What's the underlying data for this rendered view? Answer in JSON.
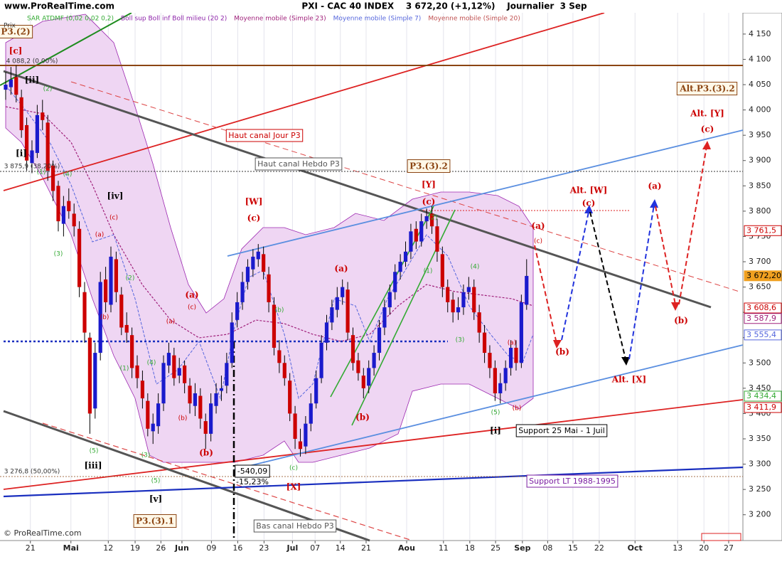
{
  "chart_data": {
    "type": "candlestick",
    "site": "www.ProRealTime.com",
    "title": "PXI - CAC 40 INDEX    3 672,20 (+1,12%)    Journalier  3 Sep",
    "y_label": "Prix",
    "copyright": "© ProRealTime.com",
    "colors": {
      "up": "#1a1acc",
      "down": "#cc0000",
      "wick": "#000000"
    },
    "legend": [
      {
        "name": "SAR ATDMF (0,02 0,02 0,2)",
        "color": "#33aa33"
      },
      {
        "name": "Boll sup Boll inf Boll milieu (20 2)",
        "color": "#8e24aa"
      },
      {
        "name": "Moyenne mobile (Simple 23)",
        "color": "#a0207a"
      },
      {
        "name": "Moyenne mobile (Simple 7)",
        "color": "#5566dd"
      },
      {
        "name": "Moyenne mobile (Simple 20)",
        "color": "#c05050"
      }
    ],
    "candles": [
      [
        4040,
        4075,
        4020,
        4050
      ],
      [
        4045,
        4085,
        4030,
        4060
      ],
      [
        4065,
        4088,
        4015,
        4030
      ],
      [
        4025,
        4040,
        3945,
        3960
      ],
      [
        3970,
        3985,
        3880,
        3900
      ],
      [
        3895,
        3940,
        3875,
        3920
      ],
      [
        3915,
        4010,
        3905,
        3990
      ],
      [
        3995,
        4020,
        3960,
        3980
      ],
      [
        3975,
        3990,
        3860,
        3880
      ],
      [
        3890,
        3900,
        3820,
        3840
      ],
      [
        3850,
        3860,
        3760,
        3780
      ],
      [
        3775,
        3830,
        3750,
        3810
      ],
      [
        3820,
        3845,
        3785,
        3800
      ],
      [
        3795,
        3815,
        3750,
        3770
      ],
      [
        3765,
        3780,
        3630,
        3650
      ],
      [
        3640,
        3660,
        3540,
        3560
      ],
      [
        3550,
        3560,
        3360,
        3400
      ],
      [
        3410,
        3540,
        3390,
        3520
      ],
      [
        3520,
        3680,
        3505,
        3660
      ],
      [
        3665,
        3690,
        3600,
        3620
      ],
      [
        3615,
        3730,
        3600,
        3710
      ],
      [
        3705,
        3720,
        3620,
        3640
      ],
      [
        3635,
        3650,
        3555,
        3570
      ],
      [
        3575,
        3600,
        3540,
        3560
      ],
      [
        3555,
        3570,
        3470,
        3490
      ],
      [
        3495,
        3515,
        3450,
        3470
      ],
      [
        3465,
        3485,
        3410,
        3430
      ],
      [
        3425,
        3440,
        3355,
        3370
      ],
      [
        3365,
        3400,
        3340,
        3380
      ],
      [
        3375,
        3440,
        3360,
        3420
      ],
      [
        3420,
        3515,
        3405,
        3500
      ],
      [
        3495,
        3540,
        3480,
        3520
      ],
      [
        3515,
        3530,
        3455,
        3470
      ],
      [
        3475,
        3510,
        3460,
        3490
      ],
      [
        3495,
        3505,
        3440,
        3460
      ],
      [
        3455,
        3470,
        3400,
        3420
      ],
      [
        3415,
        3460,
        3395,
        3440
      ],
      [
        3435,
        3450,
        3370,
        3390
      ],
      [
        3385,
        3400,
        3330,
        3360
      ],
      [
        3360,
        3440,
        3345,
        3420
      ],
      [
        3415,
        3460,
        3400,
        3440
      ],
      [
        3445,
        3475,
        3425,
        3450
      ],
      [
        3455,
        3520,
        3440,
        3500
      ],
      [
        3500,
        3600,
        3490,
        3580
      ],
      [
        3585,
        3640,
        3570,
        3620
      ],
      [
        3620,
        3680,
        3605,
        3660
      ],
      [
        3660,
        3705,
        3645,
        3690
      ],
      [
        3685,
        3725,
        3670,
        3710
      ],
      [
        3705,
        3735,
        3690,
        3720
      ],
      [
        3715,
        3730,
        3665,
        3680
      ],
      [
        3675,
        3690,
        3600,
        3620
      ],
      [
        3615,
        3630,
        3515,
        3530
      ],
      [
        3525,
        3545,
        3480,
        3500
      ],
      [
        3500,
        3515,
        3455,
        3470
      ],
      [
        3465,
        3480,
        3385,
        3400
      ],
      [
        3400,
        3415,
        3330,
        3350
      ],
      [
        3345,
        3370,
        3315,
        3330
      ],
      [
        3335,
        3395,
        3320,
        3380
      ],
      [
        3380,
        3440,
        3365,
        3420
      ],
      [
        3420,
        3485,
        3410,
        3470
      ],
      [
        3470,
        3555,
        3460,
        3540
      ],
      [
        3540,
        3595,
        3525,
        3580
      ],
      [
        3580,
        3625,
        3565,
        3610
      ],
      [
        3605,
        3650,
        3590,
        3630
      ],
      [
        3630,
        3665,
        3615,
        3650
      ],
      [
        3645,
        3660,
        3545,
        3560
      ],
      [
        3555,
        3570,
        3485,
        3500
      ],
      [
        3505,
        3520,
        3465,
        3480
      ],
      [
        3475,
        3490,
        3430,
        3450
      ],
      [
        3455,
        3505,
        3440,
        3490
      ],
      [
        3490,
        3535,
        3475,
        3520
      ],
      [
        3520,
        3585,
        3505,
        3570
      ],
      [
        3570,
        3625,
        3555,
        3610
      ],
      [
        3610,
        3655,
        3595,
        3640
      ],
      [
        3640,
        3695,
        3625,
        3680
      ],
      [
        3680,
        3715,
        3665,
        3700
      ],
      [
        3700,
        3740,
        3690,
        3720
      ],
      [
        3720,
        3775,
        3705,
        3760
      ],
      [
        3765,
        3780,
        3725,
        3740
      ],
      [
        3740,
        3795,
        3730,
        3780
      ],
      [
        3780,
        3805,
        3765,
        3790
      ],
      [
        3795,
        3810,
        3755,
        3770
      ],
      [
        3770,
        3785,
        3700,
        3720
      ],
      [
        3715,
        3730,
        3630,
        3650
      ],
      [
        3650,
        3665,
        3600,
        3620
      ],
      [
        3625,
        3640,
        3580,
        3600
      ],
      [
        3600,
        3630,
        3585,
        3610
      ],
      [
        3610,
        3655,
        3595,
        3640
      ],
      [
        3640,
        3670,
        3625,
        3650
      ],
      [
        3650,
        3665,
        3585,
        3600
      ],
      [
        3600,
        3615,
        3540,
        3560
      ],
      [
        3560,
        3575,
        3500,
        3520
      ],
      [
        3520,
        3535,
        3470,
        3490
      ],
      [
        3490,
        3505,
        3425,
        3440
      ],
      [
        3440,
        3480,
        3420,
        3460
      ],
      [
        3460,
        3505,
        3445,
        3490
      ],
      [
        3490,
        3545,
        3475,
        3530
      ],
      [
        3530,
        3545,
        3485,
        3500
      ],
      [
        3500,
        3635,
        3490,
        3620
      ],
      [
        3615,
        3705,
        3605,
        3672
      ]
    ],
    "xlim": [
      -0.4,
      140.1
    ],
    "xticks": [
      {
        "value": 4.7,
        "label": "21"
      },
      {
        "value": 12.4,
        "label": "Mai"
      },
      {
        "value": 19.5,
        "label": "12"
      },
      {
        "value": 24.6,
        "label": "19"
      },
      {
        "value": 29.5,
        "label": "26"
      },
      {
        "value": 33.5,
        "label": "Jun"
      },
      {
        "value": 39.1,
        "label": "09"
      },
      {
        "value": 44.1,
        "label": "16"
      },
      {
        "value": 49.1,
        "label": "23"
      },
      {
        "value": 54.5,
        "label": "Jul"
      },
      {
        "value": 58.8,
        "label": "07"
      },
      {
        "value": 63.6,
        "label": "14"
      },
      {
        "value": 68.5,
        "label": "21"
      },
      {
        "value": 76.2,
        "label": "Aou"
      },
      {
        "value": 83.2,
        "label": "11"
      },
      {
        "value": 88.2,
        "label": "18"
      },
      {
        "value": 93.1,
        "label": "25"
      },
      {
        "value": 98.2,
        "label": "Sep"
      },
      {
        "value": 103,
        "label": "08"
      },
      {
        "value": 107.8,
        "label": "15"
      },
      {
        "value": 112.8,
        "label": "22"
      },
      {
        "value": 119.6,
        "label": "Oct"
      },
      {
        "value": 127.7,
        "label": "13"
      },
      {
        "value": 132.7,
        "label": "20"
      },
      {
        "value": 137.4,
        "label": "27"
      }
    ],
    "ylim": [
      3149,
      4192
    ],
    "yticks": [
      {
        "value": 3200,
        "label": "3 200"
      },
      {
        "value": 3250,
        "label": "3 250"
      },
      {
        "value": 3300,
        "label": "3 300"
      },
      {
        "value": 3350,
        "label": "3 350"
      },
      {
        "value": 3400,
        "label": "3 400"
      },
      {
        "value": 3450,
        "label": "3 450"
      },
      {
        "value": 3500,
        "label": "3 500"
      },
      {
        "value": 3550,
        "label": "3 550"
      },
      {
        "value": 3600,
        "label": "3 600"
      },
      {
        "value": 3650,
        "label": "3 650"
      },
      {
        "value": 3700,
        "label": "3 700"
      },
      {
        "value": 3750,
        "label": "3 750"
      },
      {
        "value": 3800,
        "label": "3 800"
      },
      {
        "value": 3850,
        "label": "3 850"
      },
      {
        "value": 3900,
        "label": "3 900"
      },
      {
        "value": 3950,
        "label": "3 950"
      },
      {
        "value": 4000,
        "label": "4 000"
      },
      {
        "value": 4050,
        "label": "4 050"
      },
      {
        "value": 4100,
        "label": "4 100"
      },
      {
        "value": 4150,
        "label": "4 150"
      }
    ],
    "price_tags": [
      {
        "value": 3761.5,
        "label": "3 761,5",
        "color": "#cc0000"
      },
      {
        "value": 3672.2,
        "label": "3 672,20",
        "color": "#f0a020"
      },
      {
        "value": 3608.6,
        "label": "3 608,6",
        "color": "#cc0000"
      },
      {
        "value": 3587.9,
        "label": "3 587,9",
        "color": "#a0207a"
      },
      {
        "value": 3555.4,
        "label": "3 555,4",
        "color": "#5566dd"
      },
      {
        "value": 3434.4,
        "label": "3 434,4",
        "color": "#33aa33"
      },
      {
        "value": 3411.9,
        "label": "3 411,9",
        "color": "#cc0000"
      }
    ],
    "annotations": [
      {
        "text": "P3.(2)",
        "color": "#8b4513"
      },
      {
        "text": "[c]",
        "color": "#cc0000"
      },
      {
        "text": "4 088,2 (0,00%)",
        "color": "#333333"
      },
      {
        "text": "[ii]",
        "color": "#000000"
      },
      {
        "text": "(2)",
        "color": "#33aa33"
      },
      {
        "text": "[i]",
        "color": "#000000"
      },
      {
        "text": "3 875,9 (38,20%)",
        "color": "#333333"
      },
      {
        "text": "(1)",
        "color": "#33aa33"
      },
      {
        "text": "(4)",
        "color": "#33aa33"
      },
      {
        "text": "[iv]",
        "color": "#000000"
      },
      {
        "text": "(3)",
        "color": "#33aa33"
      },
      {
        "text": "(a)",
        "color": "#cc0000"
      },
      {
        "text": "(c)",
        "color": "#cc0000"
      },
      {
        "text": "(b)",
        "color": "#cc0000"
      },
      {
        "text": "(2)",
        "color": "#33aa33"
      },
      {
        "text": "(4)",
        "color": "#33aa33"
      },
      {
        "text": "(1)",
        "color": "#33aa33"
      },
      {
        "text": "(5)",
        "color": "#33aa33"
      },
      {
        "text": "[iii]",
        "color": "#000000"
      },
      {
        "text": "(3)",
        "color": "#33aa33"
      },
      {
        "text": "(5)",
        "color": "#33aa33"
      },
      {
        "text": "[v]",
        "color": "#000000"
      },
      {
        "text": "3 276,8 (50,00%)",
        "color": "#333333"
      },
      {
        "text": "P3.(3).1",
        "color": "#8b4513"
      },
      {
        "text": "(a)",
        "color": "#cc0000"
      },
      {
        "text": "(c)",
        "color": "#cc0000"
      },
      {
        "text": "(a)",
        "color": "#cc0000"
      },
      {
        "text": "(b)",
        "color": "#cc0000"
      },
      {
        "text": "(b)",
        "color": "#cc0000"
      },
      {
        "text": "[W]",
        "color": "#cc0000"
      },
      {
        "text": "(c)",
        "color": "#cc0000"
      },
      {
        "text": "(b)",
        "color": "#33aa33"
      },
      {
        "text": "(a)",
        "color": "#cc0000"
      },
      {
        "text": "(b)",
        "color": "#cc0000"
      },
      {
        "text": "(c)",
        "color": "#33aa33"
      },
      {
        "text": "[X]",
        "color": "#cc0000"
      },
      {
        "text": "-540,09",
        "color": "#000000"
      },
      {
        "text": "-15,23%",
        "color": "#000000"
      },
      {
        "text": "Haut canal Jour P3",
        "color": "#cc0000"
      },
      {
        "text": "Haut canal Hebdo P3",
        "color": "#555555"
      },
      {
        "text": "Bas canal Hebdo P3",
        "color": "#555555"
      },
      {
        "text": "P3.(3).2",
        "color": "#8b4513"
      },
      {
        "text": "[Y]",
        "color": "#cc0000"
      },
      {
        "text": "(c)",
        "color": "#cc0000"
      },
      {
        "text": "(2)",
        "color": "#33aa33"
      },
      {
        "text": "(1)",
        "color": "#33aa33"
      },
      {
        "text": "(3)",
        "color": "#33aa33"
      },
      {
        "text": "(4)",
        "color": "#33aa33"
      },
      {
        "text": "(a)",
        "color": "#cc0000"
      },
      {
        "text": "(5)",
        "color": "#33aa33"
      },
      {
        "text": "(b)",
        "color": "#cc0000"
      },
      {
        "text": "[i]",
        "color": "#000000"
      },
      {
        "text": "Support 25 Mai - 1 Juil",
        "color": "#000000"
      },
      {
        "text": "Support LT 1988-1995",
        "color": "#7b1fa2"
      },
      {
        "text": "(a)",
        "color": "#cc0000"
      },
      {
        "text": "(c)",
        "color": "#cc0000"
      },
      {
        "text": "(b)",
        "color": "#cc0000"
      },
      {
        "text": "Alt. [W]",
        "color": "#cc0000"
      },
      {
        "text": "(c)",
        "color": "#cc0000"
      },
      {
        "text": "Alt. [X]",
        "color": "#cc0000"
      },
      {
        "text": "(a)",
        "color": "#cc0000"
      },
      {
        "text": "(b)",
        "color": "#cc0000"
      },
      {
        "text": "Alt.P3.(3).2",
        "color": "#8b4513"
      },
      {
        "text": "Alt. [Y]",
        "color": "#cc0000"
      },
      {
        "text": "(c)",
        "color": "#cc0000"
      }
    ]
  }
}
